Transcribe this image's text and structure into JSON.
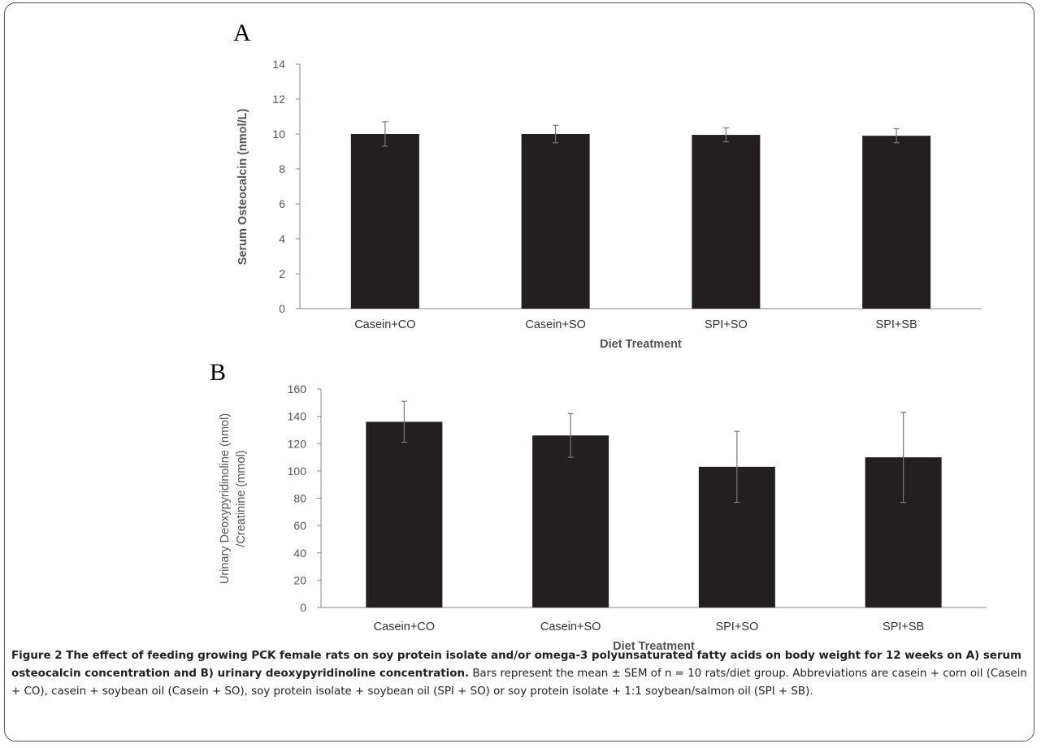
{
  "chart_data": [
    {
      "type": "bar",
      "panel": "A",
      "categories": [
        "Casein+CO",
        "Casein+SO",
        "SPI+SO",
        "SPI+SB"
      ],
      "values": [
        10.0,
        10.0,
        9.95,
        9.9
      ],
      "errors": [
        0.7,
        0.5,
        0.4,
        0.4
      ],
      "xlabel": "Diet Treatment",
      "ylabel": "Serum Osteocalcin (nmol/L)",
      "ylim": [
        0,
        14
      ],
      "yticks": [
        0,
        2,
        4,
        6,
        8,
        10,
        12,
        14
      ],
      "bar_color": "#231f20"
    },
    {
      "type": "bar",
      "panel": "B",
      "categories": [
        "Casein+CO",
        "Casein+SO",
        "SPI+SO",
        "SPI+SB"
      ],
      "values": [
        136,
        126,
        103,
        110
      ],
      "errors": [
        15,
        16,
        26,
        33
      ],
      "xlabel": "Diet Treatment",
      "ylabel": [
        "Urinary Deoxypyridinoline  (nmol)",
        "/Creatinine (mmol)"
      ],
      "ylim": [
        0,
        160
      ],
      "yticks": [
        0,
        20,
        40,
        60,
        80,
        100,
        120,
        140,
        160
      ],
      "bar_color": "#231f20"
    }
  ],
  "caption": {
    "title": "Figure 2 The effect of feeding growing PCK female rats on soy protein isolate and/or omega-3 polyunsaturated fatty acids on body weight for 12 weeks on A) serum osteocalcin concentration and B) urinary deoxypyridinoline concentration.",
    "body": "Bars represent the mean ± SEM of n = 10 rats/diet group. Abbreviations are casein + corn oil (Casein + CO), casein + soybean oil (Casein + SO), soy protein isolate + soybean oil (SPI + SO) or soy protein isolate + 1:1 soybean/salmon oil (SPI + SB)."
  }
}
